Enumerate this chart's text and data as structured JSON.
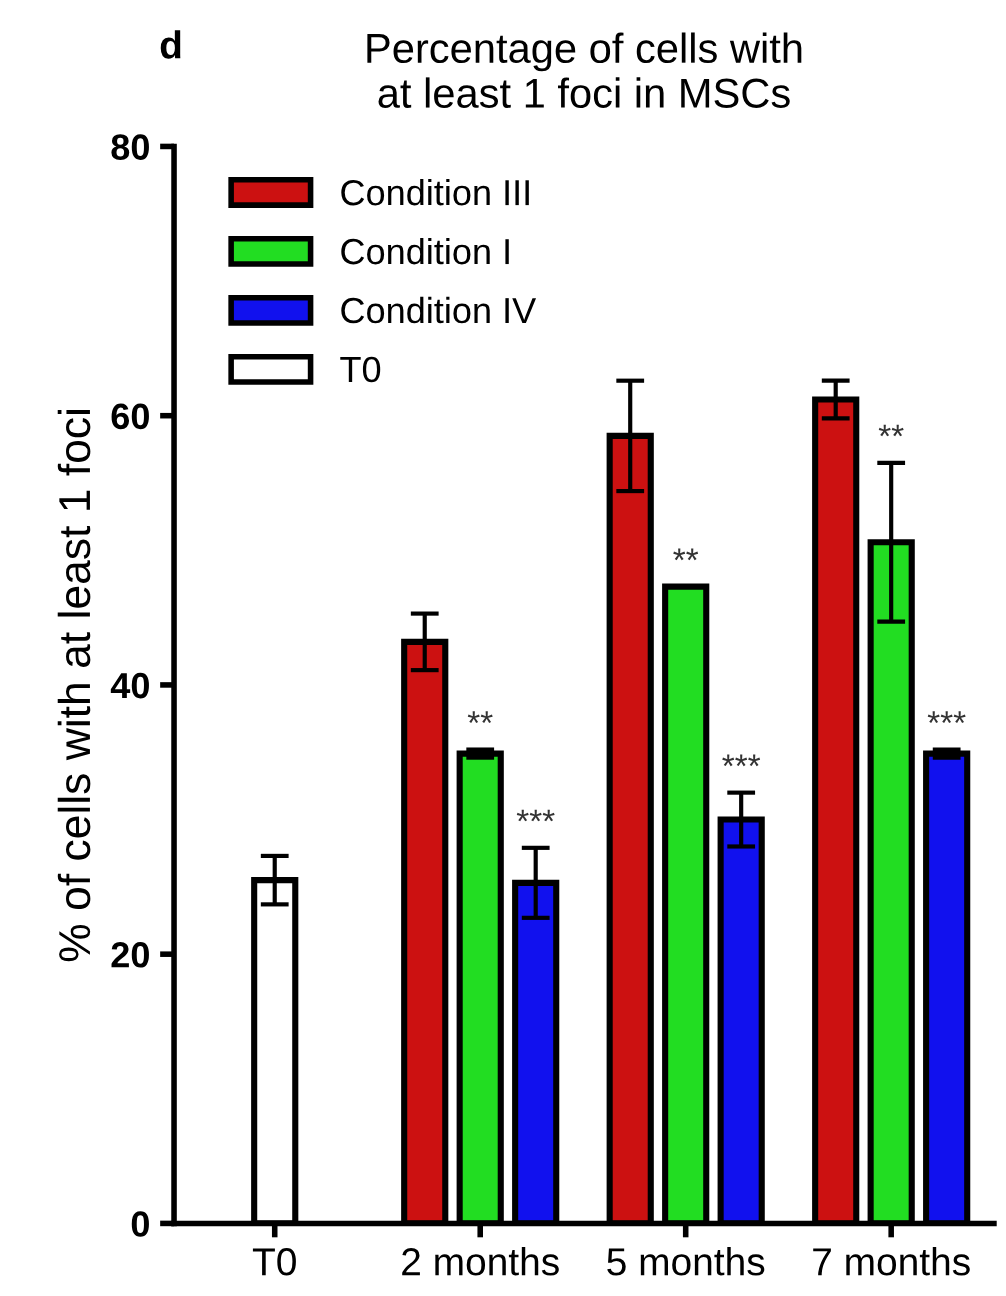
{
  "chart_data": {
    "type": "bar",
    "title": "Percentage of cells with\nat least 1 foci in MSCs",
    "ylabel": "% of cells with at least 1 foci",
    "annotations": [
      "d"
    ],
    "categories": [
      "T0",
      "2 months",
      "5 months",
      "7 months"
    ],
    "series": [
      {
        "name": "Condition III",
        "color": "#cc1111",
        "values": [
          null,
          43.2,
          58.5,
          61.2
        ],
        "errors": [
          null,
          2.1,
          4.1,
          1.4
        ]
      },
      {
        "name": "Condition I",
        "color": "#22dd22",
        "values": [
          null,
          34.9,
          47.3,
          50.6
        ],
        "errors": [
          null,
          0.3,
          null,
          5.9
        ],
        "value_labels": [
          null,
          "**",
          "**",
          "**"
        ]
      },
      {
        "name": "Condition IV",
        "color": "#1111ee",
        "values": [
          null,
          25.3,
          30.0,
          34.9
        ],
        "errors": [
          null,
          2.6,
          2.0,
          0.3
        ],
        "value_labels": [
          null,
          "***",
          "***",
          "***"
        ]
      },
      {
        "name": "T0",
        "color": "#ffffff",
        "values": [
          25.5,
          null,
          null,
          null
        ],
        "errors": [
          1.8,
          null,
          null,
          null
        ]
      }
    ],
    "ylim": [
      0,
      80
    ],
    "yticks": [
      0,
      20,
      40,
      60,
      80
    ],
    "grid": false,
    "legend": "top left"
  }
}
